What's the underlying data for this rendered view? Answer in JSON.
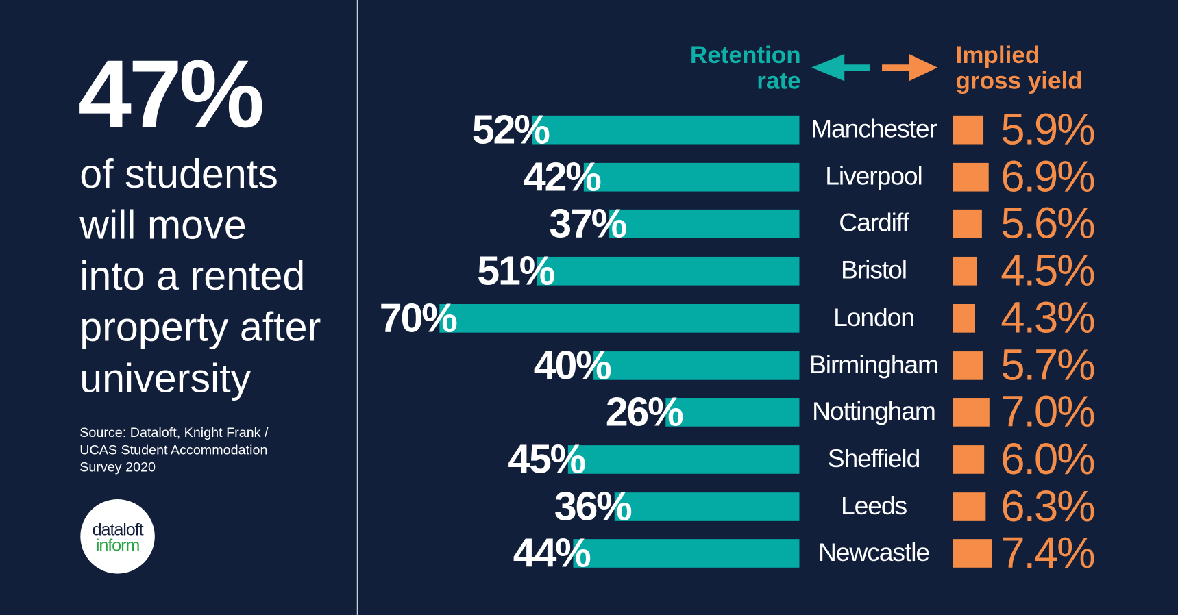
{
  "headline": {
    "stat": "47%",
    "lines": [
      "of students",
      "will move",
      "into a rented",
      "property after",
      "university"
    ]
  },
  "source": "Source: Dataloft, Knight Frank / UCAS Student Accommodation Survey 2020",
  "logo": {
    "line1": "dataloft",
    "line2": "inform"
  },
  "colors": {
    "background": "#111f3a",
    "retention": "#04aba5",
    "yield": "#f58c48"
  },
  "chart_data": {
    "type": "bar",
    "left_series_label": "Retention rate",
    "right_series_label": "Implied gross yield",
    "categories": [
      "Manchester",
      "Liverpool",
      "Cardiff",
      "Bristol",
      "London",
      "Birmingham",
      "Nottingham",
      "Sheffield",
      "Leeds",
      "Newcastle"
    ],
    "series": [
      {
        "name": "Retention rate",
        "unit": "%",
        "values": [
          52,
          42,
          37,
          51,
          70,
          40,
          26,
          45,
          36,
          44
        ],
        "labels": [
          "52%",
          "42%",
          "37%",
          "51%",
          "70%",
          "40%",
          "26%",
          "45%",
          "36%",
          "44%"
        ]
      },
      {
        "name": "Implied gross yield",
        "unit": "%",
        "values": [
          5.9,
          6.9,
          5.6,
          4.5,
          4.3,
          5.7,
          7.0,
          6.0,
          6.3,
          7.4
        ],
        "labels": [
          "5.9%",
          "6.9%",
          "5.6%",
          "4.5%",
          "4.3%",
          "5.7%",
          "7.0%",
          "6.0%",
          "6.3%",
          "7.4%"
        ]
      }
    ]
  }
}
